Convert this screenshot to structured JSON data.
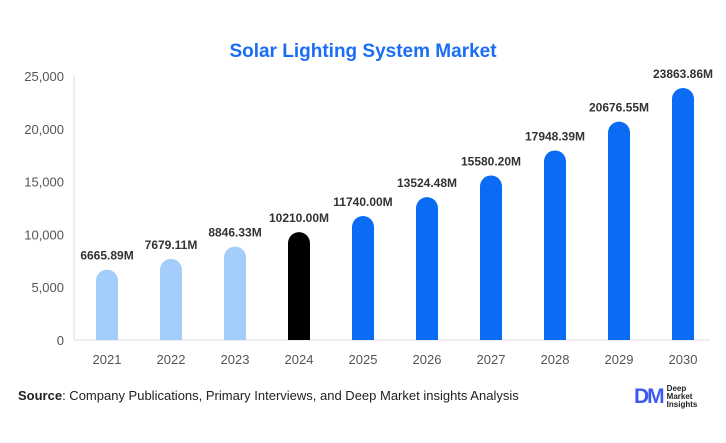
{
  "chart_data": {
    "type": "bar",
    "title": "Solar Lighting System Market",
    "categories": [
      "2021",
      "2022",
      "2023",
      "2024",
      "2025",
      "2026",
      "2027",
      "2028",
      "2029",
      "2030"
    ],
    "values": [
      6665.89,
      7679.11,
      8846.33,
      10210.0,
      11740.0,
      13524.48,
      15580.2,
      17948.39,
      20676.55,
      23863.86
    ],
    "data_labels": [
      "6665.89M",
      "7679.11M",
      "8846.33M",
      "10210.00M",
      "11740.00M",
      "13524.48M",
      "15580.20M",
      "17948.39M",
      "20676.55M",
      "23863.86M"
    ],
    "yticks": [
      "0",
      "5,000",
      "10,000",
      "15,000",
      "20,000",
      "25,000"
    ],
    "ylim": [
      0,
      25000
    ],
    "grid": false,
    "colors": {
      "historical": "#a3cdfb",
      "base_year": "#000000",
      "forecast": "#0a6cf5"
    },
    "bar_colors": [
      "historical",
      "historical",
      "historical",
      "base_year",
      "forecast",
      "forecast",
      "forecast",
      "forecast",
      "forecast",
      "forecast"
    ]
  },
  "source": {
    "label": "Source",
    "text": ": Company Publications, Primary Interviews, and Deep Market insights Analysis"
  },
  "logo": {
    "mark": "DM",
    "lines": [
      "Deep",
      "Market",
      "Insights"
    ]
  }
}
